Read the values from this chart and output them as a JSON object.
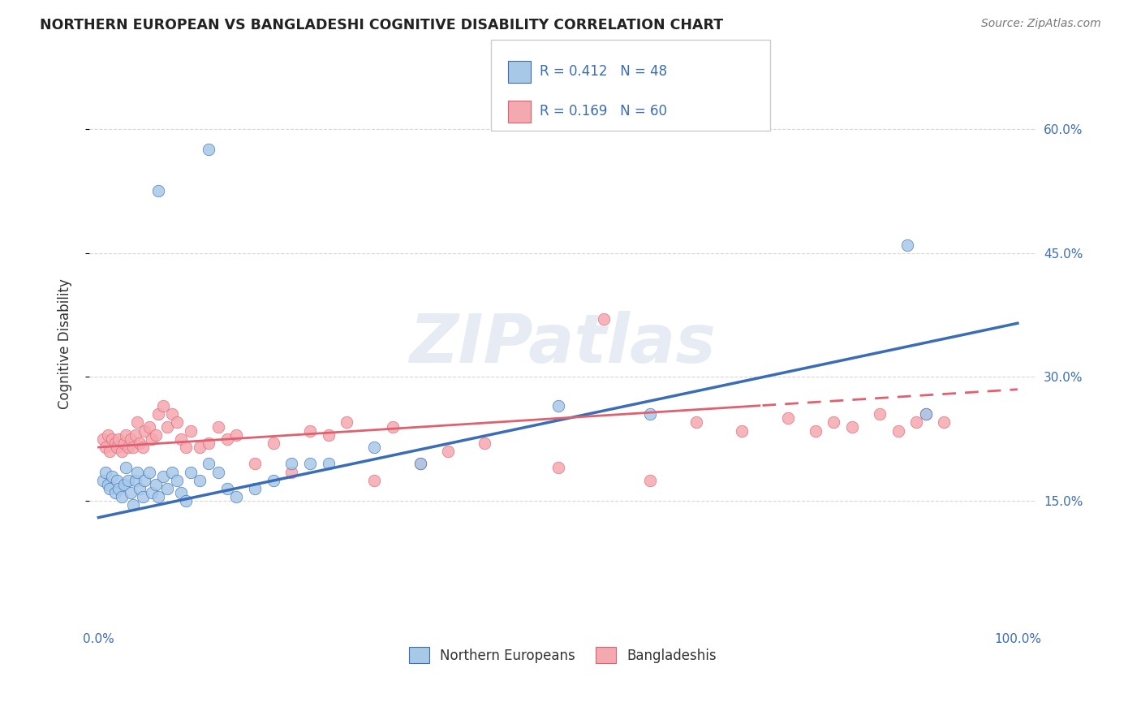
{
  "title": "NORTHERN EUROPEAN VS BANGLADESHI COGNITIVE DISABILITY CORRELATION CHART",
  "source": "Source: ZipAtlas.com",
  "ylabel": "Cognitive Disability",
  "xlim": [
    0.0,
    1.0
  ],
  "ylim": [
    0.0,
    0.68
  ],
  "yticks": [
    0.15,
    0.3,
    0.45,
    0.6
  ],
  "ytick_labels": [
    "15.0%",
    "30.0%",
    "45.0%",
    "60.0%"
  ],
  "color_blue": "#A8C8E8",
  "color_pink": "#F4A8B0",
  "color_blue_line": "#3a6db5",
  "color_pink_line": "#e06070",
  "color_legend_text": "#3a6db5",
  "color_grid": "#cccccc",
  "background_color": "#ffffff",
  "watermark_text": "ZIPatlas",
  "legend_line1": "R = 0.412   N = 48",
  "legend_line2": "R = 0.169   N = 60",
  "legend_label1": "Northern Europeans",
  "legend_label2": "Bangladeshis",
  "blue_trend_x0": 0.0,
  "blue_trend_y0": 0.13,
  "blue_trend_x1": 1.0,
  "blue_trend_y1": 0.365,
  "pink_trend_x0": 0.0,
  "pink_trend_y0": 0.215,
  "pink_trend_x1": 1.0,
  "pink_trend_y1": 0.285,
  "pink_trend_solid_end": 0.72,
  "ne_x": [
    0.005,
    0.008,
    0.01,
    0.012,
    0.015,
    0.018,
    0.02,
    0.022,
    0.025,
    0.028,
    0.03,
    0.032,
    0.035,
    0.038,
    0.04,
    0.042,
    0.045,
    0.048,
    0.05,
    0.055,
    0.058,
    0.062,
    0.065,
    0.07,
    0.075,
    0.08,
    0.085,
    0.09,
    0.095,
    0.1,
    0.11,
    0.12,
    0.13,
    0.14,
    0.15,
    0.17,
    0.19,
    0.21,
    0.23,
    0.25,
    0.3,
    0.35,
    0.5,
    0.6,
    0.88,
    0.9,
    0.065,
    0.12
  ],
  "ne_y": [
    0.175,
    0.185,
    0.17,
    0.165,
    0.18,
    0.16,
    0.175,
    0.165,
    0.155,
    0.17,
    0.19,
    0.175,
    0.16,
    0.145,
    0.175,
    0.185,
    0.165,
    0.155,
    0.175,
    0.185,
    0.16,
    0.17,
    0.155,
    0.18,
    0.165,
    0.185,
    0.175,
    0.16,
    0.15,
    0.185,
    0.175,
    0.195,
    0.185,
    0.165,
    0.155,
    0.165,
    0.175,
    0.195,
    0.195,
    0.195,
    0.215,
    0.195,
    0.265,
    0.255,
    0.46,
    0.255,
    0.525,
    0.575
  ],
  "bd_x": [
    0.005,
    0.008,
    0.01,
    0.012,
    0.015,
    0.018,
    0.02,
    0.022,
    0.025,
    0.028,
    0.03,
    0.032,
    0.035,
    0.038,
    0.04,
    0.042,
    0.045,
    0.048,
    0.05,
    0.055,
    0.058,
    0.062,
    0.065,
    0.07,
    0.075,
    0.08,
    0.085,
    0.09,
    0.095,
    0.1,
    0.11,
    0.12,
    0.13,
    0.14,
    0.15,
    0.17,
    0.19,
    0.21,
    0.23,
    0.25,
    0.27,
    0.3,
    0.32,
    0.35,
    0.38,
    0.42,
    0.5,
    0.55,
    0.6,
    0.65,
    0.7,
    0.75,
    0.78,
    0.8,
    0.82,
    0.85,
    0.87,
    0.89,
    0.9,
    0.92
  ],
  "bd_y": [
    0.225,
    0.215,
    0.23,
    0.21,
    0.225,
    0.22,
    0.215,
    0.225,
    0.21,
    0.22,
    0.23,
    0.215,
    0.225,
    0.215,
    0.23,
    0.245,
    0.22,
    0.215,
    0.235,
    0.24,
    0.225,
    0.23,
    0.255,
    0.265,
    0.24,
    0.255,
    0.245,
    0.225,
    0.215,
    0.235,
    0.215,
    0.22,
    0.24,
    0.225,
    0.23,
    0.195,
    0.22,
    0.185,
    0.235,
    0.23,
    0.245,
    0.175,
    0.24,
    0.195,
    0.21,
    0.22,
    0.19,
    0.37,
    0.175,
    0.245,
    0.235,
    0.25,
    0.235,
    0.245,
    0.24,
    0.255,
    0.235,
    0.245,
    0.255,
    0.245
  ]
}
